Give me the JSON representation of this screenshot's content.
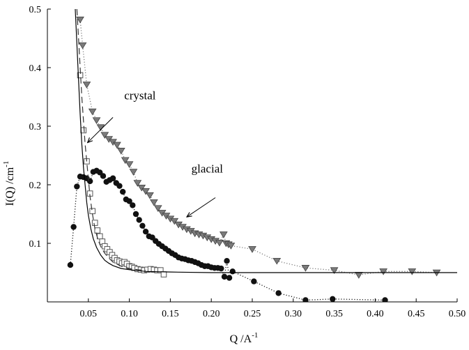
{
  "chart_data": {
    "type": "scatter",
    "xlabel": "Q  /A",
    "xlabel_sup": "-1",
    "ylabel": "I(Q) /cm",
    "ylabel_sup": "-1",
    "xlim": [
      0,
      0.5
    ],
    "ylim": [
      0,
      0.5
    ],
    "xticks": [
      0.05,
      0.1,
      0.15,
      0.2,
      0.25,
      0.3,
      0.35,
      0.4,
      0.45,
      0.5
    ],
    "xtick_labels": [
      "0.05",
      "0.10",
      "0.15",
      "0.20",
      "0.25",
      "0.30",
      "0.35",
      "0.40",
      "0.45",
      "0.50"
    ],
    "yticks": [
      0.1,
      0.2,
      0.3,
      0.4,
      0.5
    ],
    "ytick_labels": [
      "0.1",
      "0.2",
      "0.3",
      "0.4",
      "0.5"
    ],
    "grid": false,
    "annotations": [
      {
        "text": "crystal",
        "at": [
          0.113,
          0.346
        ],
        "arrow_from": [
          0.08,
          0.315
        ],
        "arrow_to": [
          0.049,
          0.272
        ]
      },
      {
        "text": "glacial",
        "at": [
          0.195,
          0.221
        ],
        "arrow_from": [
          0.205,
          0.178
        ],
        "arrow_to": [
          0.17,
          0.145
        ]
      }
    ],
    "series": [
      {
        "marker": "triangle-down",
        "color": "#7a7a7a",
        "line": "dotted",
        "x": [
          0.04,
          0.043,
          0.048,
          0.055,
          0.06,
          0.065,
          0.07,
          0.075,
          0.08,
          0.085,
          0.09,
          0.095,
          0.1,
          0.105,
          0.11,
          0.115,
          0.12,
          0.125,
          0.13,
          0.135,
          0.14,
          0.145,
          0.15,
          0.155,
          0.16,
          0.165,
          0.17,
          0.175,
          0.18,
          0.185,
          0.19,
          0.195,
          0.2,
          0.205,
          0.21,
          0.215,
          0.218,
          0.221,
          0.224,
          0.25,
          0.28,
          0.315,
          0.35,
          0.38,
          0.41,
          0.445,
          0.475
        ],
        "y": [
          0.482,
          0.438,
          0.371,
          0.325,
          0.31,
          0.298,
          0.285,
          0.278,
          0.273,
          0.268,
          0.258,
          0.242,
          0.235,
          0.222,
          0.203,
          0.195,
          0.189,
          0.182,
          0.17,
          0.16,
          0.152,
          0.147,
          0.142,
          0.138,
          0.132,
          0.128,
          0.124,
          0.121,
          0.117,
          0.115,
          0.113,
          0.11,
          0.107,
          0.104,
          0.101,
          0.115,
          0.1,
          0.098,
          0.096,
          0.09,
          0.07,
          0.058,
          0.054,
          0.046,
          0.052,
          0.052,
          0.05
        ]
      },
      {
        "marker": "circle",
        "color": "#111111",
        "line": "dotted",
        "x": [
          0.028,
          0.032,
          0.036,
          0.04,
          0.044,
          0.048,
          0.052,
          0.056,
          0.06,
          0.064,
          0.068,
          0.072,
          0.076,
          0.08,
          0.084,
          0.088,
          0.092,
          0.096,
          0.1,
          0.104,
          0.108,
          0.112,
          0.116,
          0.12,
          0.124,
          0.128,
          0.132,
          0.136,
          0.14,
          0.144,
          0.148,
          0.152,
          0.156,
          0.16,
          0.164,
          0.168,
          0.172,
          0.176,
          0.18,
          0.184,
          0.188,
          0.192,
          0.196,
          0.2,
          0.204,
          0.208,
          0.212,
          0.216,
          0.219,
          0.222,
          0.226,
          0.252,
          0.282,
          0.315,
          0.348,
          0.412
        ],
        "y": [
          0.063,
          0.128,
          0.197,
          0.214,
          0.213,
          0.211,
          0.206,
          0.222,
          0.224,
          0.221,
          0.215,
          0.205,
          0.208,
          0.211,
          0.203,
          0.198,
          0.188,
          0.175,
          0.172,
          0.165,
          0.15,
          0.14,
          0.13,
          0.12,
          0.112,
          0.11,
          0.104,
          0.099,
          0.095,
          0.091,
          0.087,
          0.083,
          0.08,
          0.076,
          0.074,
          0.073,
          0.071,
          0.07,
          0.068,
          0.066,
          0.063,
          0.061,
          0.061,
          0.059,
          0.058,
          0.058,
          0.057,
          0.043,
          0.07,
          0.041,
          0.052,
          0.035,
          0.015,
          0.003,
          0.005,
          0.003
        ]
      },
      {
        "marker": "square-open",
        "color": "#555555",
        "line": "none",
        "x": [
          0.04,
          0.044,
          0.048,
          0.052,
          0.055,
          0.058,
          0.061,
          0.064,
          0.067,
          0.07,
          0.073,
          0.076,
          0.079,
          0.082,
          0.085,
          0.088,
          0.091,
          0.094,
          0.097,
          0.1,
          0.103,
          0.106,
          0.11,
          0.114,
          0.118,
          0.122,
          0.126,
          0.13,
          0.134,
          0.138,
          0.142
        ],
        "y": [
          0.387,
          0.293,
          0.24,
          0.185,
          0.155,
          0.135,
          0.122,
          0.112,
          0.103,
          0.095,
          0.09,
          0.085,
          0.08,
          0.075,
          0.071,
          0.069,
          0.066,
          0.068,
          0.065,
          0.061,
          0.06,
          0.058,
          0.056,
          0.055,
          0.054,
          0.055,
          0.056,
          0.055,
          0.054,
          0.054,
          0.047
        ]
      },
      {
        "marker": "none",
        "color": "#333333",
        "line": "dashed",
        "x": [
          0.036,
          0.038,
          0.04,
          0.042,
          0.044,
          0.046,
          0.048,
          0.05,
          0.052,
          0.055,
          0.058,
          0.062,
          0.066,
          0.07,
          0.075,
          0.08,
          0.09,
          0.1,
          0.11,
          0.12
        ],
        "y": [
          0.5,
          0.45,
          0.4,
          0.35,
          0.31,
          0.27,
          0.24,
          0.21,
          0.18,
          0.15,
          0.125,
          0.105,
          0.092,
          0.083,
          0.075,
          0.068,
          0.061,
          0.057,
          0.055,
          0.054
        ]
      },
      {
        "marker": "none",
        "color": "#000000",
        "line": "solid",
        "x": [
          0.034,
          0.036,
          0.038,
          0.04,
          0.042,
          0.044,
          0.046,
          0.048,
          0.05,
          0.053,
          0.056,
          0.06,
          0.065,
          0.07,
          0.075,
          0.08,
          0.09,
          0.1,
          0.12,
          0.15,
          0.2,
          0.3,
          0.4,
          0.5
        ],
        "y": [
          0.5,
          0.44,
          0.38,
          0.32,
          0.27,
          0.23,
          0.2,
          0.17,
          0.148,
          0.125,
          0.108,
          0.093,
          0.08,
          0.071,
          0.066,
          0.062,
          0.057,
          0.055,
          0.052,
          0.051,
          0.05,
          0.05,
          0.05,
          0.05
        ]
      }
    ]
  }
}
